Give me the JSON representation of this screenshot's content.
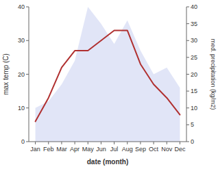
{
  "chart_data": {
    "type": "line",
    "categories": [
      "Jan",
      "Feb",
      "Mar",
      "Apr",
      "May",
      "Jun",
      "Jul",
      "Aug",
      "Sep",
      "Oct",
      "Nov",
      "Dec"
    ],
    "series": [
      {
        "type": "area",
        "axis": "y2",
        "color": "#c8d0f0",
        "values": [
          10,
          12,
          17,
          24,
          40,
          35,
          29,
          36,
          27,
          20,
          22,
          16
        ]
      },
      {
        "type": "line",
        "color": "#b03030",
        "values": [
          6,
          13,
          22,
          27,
          27,
          30,
          33,
          33,
          23,
          17,
          13,
          8
        ]
      }
    ],
    "xlabel": "date (month)",
    "ylabel": "max temp (C)",
    "y2label": "med. precipitation (kg/m2)",
    "ylim": [
      0,
      40
    ],
    "yticks": [
      0,
      10,
      20,
      30,
      40
    ],
    "y2lim": [
      0,
      40
    ],
    "y2ticks": [
      0,
      5,
      10,
      15,
      20,
      25,
      30,
      35,
      40
    ],
    "grid": false
  }
}
